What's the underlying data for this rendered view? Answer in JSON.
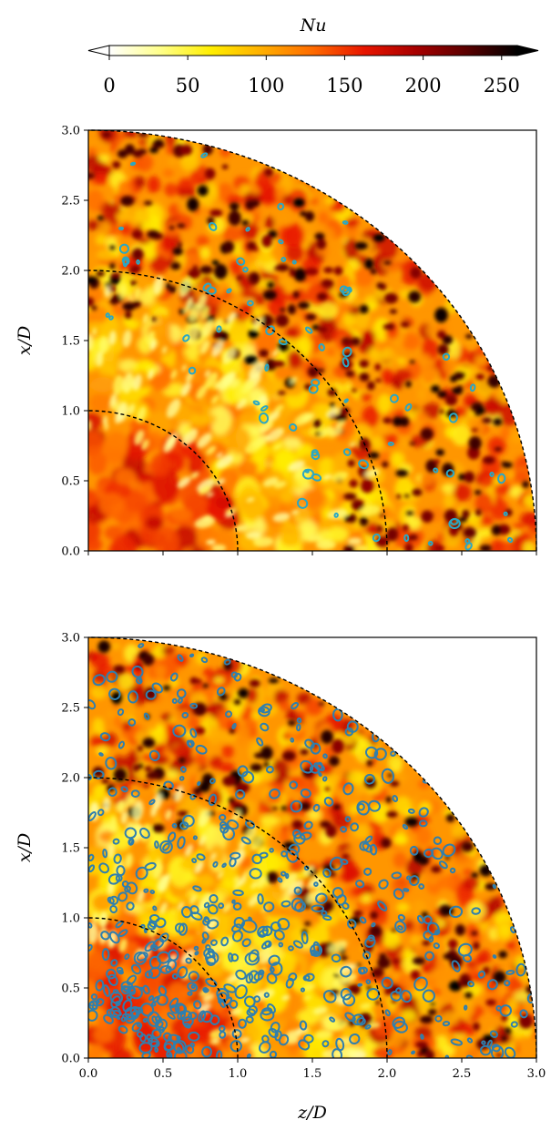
{
  "colorbar": {
    "label": "Nu",
    "ticks": [
      "0",
      "50",
      "100",
      "150",
      "200",
      "250"
    ],
    "tick_values": [
      0,
      50,
      100,
      150,
      200,
      250
    ],
    "range": [
      0,
      260
    ],
    "extend": "both",
    "colormap": [
      "#ffffff",
      "#ffff8a",
      "#ffee00",
      "#ffae00",
      "#ff6a00",
      "#e81500",
      "#a80000",
      "#5a0000",
      "#000000"
    ]
  },
  "chart_data": [
    {
      "type": "heatmap",
      "title": "",
      "xlabel": "",
      "ylabel": "x/D",
      "xlim": [
        0.0,
        3.0
      ],
      "ylim": [
        0.0,
        3.0
      ],
      "x_ticks": [
        "",
        "",
        "",
        "",
        "",
        "",
        ""
      ],
      "y_ticks": [
        "0.0",
        "0.5",
        "1.0",
        "1.5",
        "2.0",
        "2.5",
        "3.0"
      ],
      "domain": "quarter-disk of radius 3.0",
      "reference_arcs_radius": [
        1.0,
        2.0,
        3.0
      ],
      "contour_color": "#2aa7c4",
      "contour_density": "sparse"
    },
    {
      "type": "heatmap",
      "title": "",
      "xlabel": "z/D",
      "ylabel": "x/D",
      "xlim": [
        0.0,
        3.0
      ],
      "ylim": [
        0.0,
        3.0
      ],
      "x_ticks": [
        "0.0",
        "0.5",
        "1.0",
        "1.5",
        "2.0",
        "2.5",
        "3.0"
      ],
      "y_ticks": [
        "0.0",
        "0.5",
        "1.0",
        "1.5",
        "2.0",
        "2.5",
        "3.0"
      ],
      "domain": "quarter-disk of radius 3.0",
      "reference_arcs_radius": [
        1.0,
        2.0,
        3.0
      ],
      "contour_color": "#2f7fae",
      "contour_density": "dense"
    }
  ]
}
